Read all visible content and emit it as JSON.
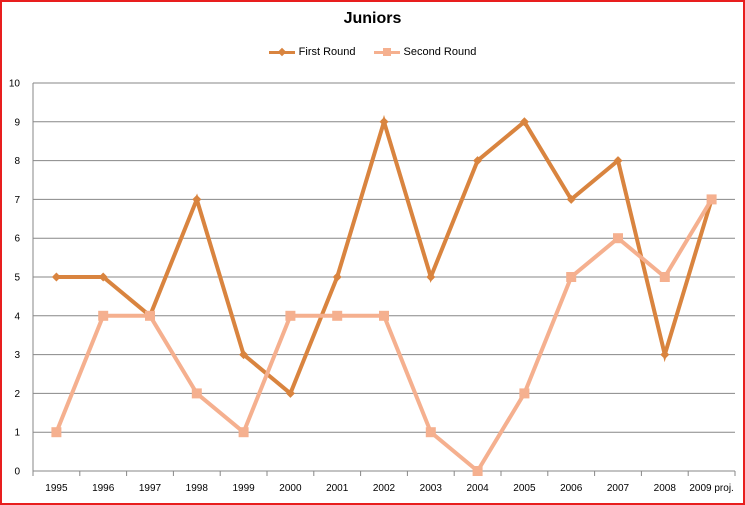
{
  "chart_data": {
    "type": "line",
    "title": "Juniors",
    "categories": [
      "1995",
      "1996",
      "1997",
      "1998",
      "1999",
      "2000",
      "2001",
      "2002",
      "2003",
      "2004",
      "2005",
      "2006",
      "2007",
      "2008",
      "2009 proj."
    ],
    "series": [
      {
        "name": "First Round",
        "values": [
          5,
          5,
          4,
          7,
          3,
          2,
          5,
          9,
          5,
          8,
          9,
          7,
          8,
          3,
          7
        ],
        "color": "#d9843f",
        "marker": "diamond"
      },
      {
        "name": "Second Round",
        "values": [
          1,
          4,
          4,
          2,
          1,
          4,
          4,
          4,
          1,
          0,
          2,
          5,
          6,
          5,
          7
        ],
        "color": "#f5b08f",
        "marker": "square"
      }
    ],
    "ylim": [
      0,
      10
    ],
    "yticks": [
      0,
      1,
      2,
      3,
      4,
      5,
      6,
      7,
      8,
      9,
      10
    ],
    "grid": true,
    "legend_position": "top"
  },
  "colors": {
    "border": "#e81e1e",
    "grid": "#878787"
  }
}
